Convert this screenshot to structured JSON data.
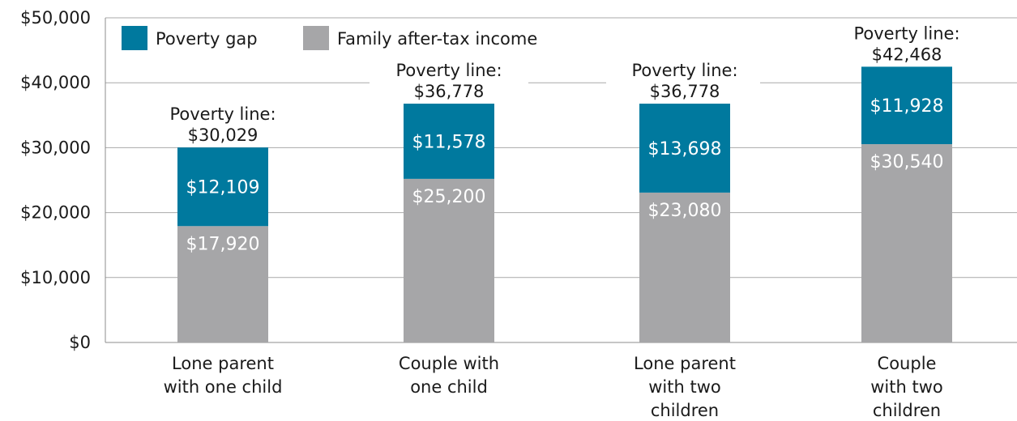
{
  "chart_data": {
    "type": "bar",
    "stacked": true,
    "categories": [
      [
        "Lone parent",
        "with one child"
      ],
      [
        "Couple with",
        "one child"
      ],
      [
        "Lone parent",
        "with two",
        "children"
      ],
      [
        "Couple",
        "with two",
        "children"
      ]
    ],
    "series": [
      {
        "name": "Family after-tax income",
        "color": "#a6a6a8",
        "values": [
          17920,
          25200,
          23080,
          30540
        ],
        "labels": [
          "$17,920",
          "$25,200",
          "$23,080",
          "$30,540"
        ]
      },
      {
        "name": "Poverty gap",
        "color": "#00799e",
        "values": [
          12109,
          11578,
          13698,
          11928
        ],
        "labels": [
          "$12,109",
          "$11,578",
          "$13,698",
          "$11,928"
        ]
      }
    ],
    "poverty_line": {
      "label": "Poverty line:",
      "values": [
        30029,
        36778,
        36778,
        42468
      ],
      "value_labels": [
        "$30,029",
        "$36,778",
        "$36,778",
        "$42,468"
      ]
    },
    "ylim": [
      0,
      50000
    ],
    "yticks": [
      0,
      10000,
      20000,
      30000,
      40000,
      50000
    ],
    "ytick_labels": [
      "$0",
      "$10,000",
      "$20,000",
      "$30,000",
      "$40,000",
      "$50,000"
    ],
    "grid": true,
    "legend_position": "top-left",
    "legend_order": [
      "Poverty gap",
      "Family after-tax income"
    ],
    "title": "",
    "xlabel": "",
    "ylabel": ""
  }
}
